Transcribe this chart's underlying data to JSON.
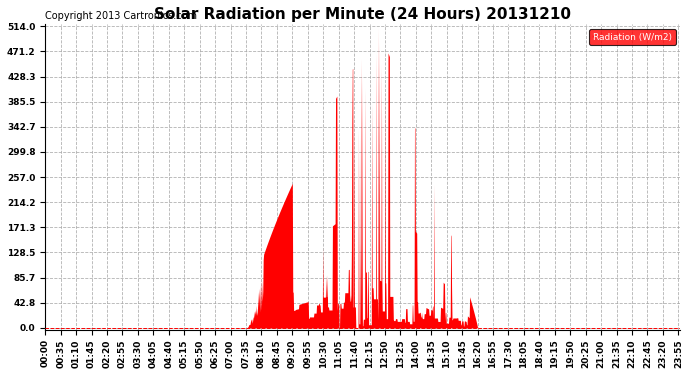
{
  "title": "Solar Radiation per Minute (24 Hours) 20131210",
  "copyright": "Copyright 2013 Cartronics.com",
  "legend_label": "Radiation (W/m2)",
  "yticks": [
    0.0,
    42.8,
    85.7,
    128.5,
    171.3,
    214.2,
    257.0,
    299.8,
    342.7,
    385.5,
    428.3,
    471.2,
    514.0
  ],
  "ymax": 514.0,
  "bar_color": "#FF0000",
  "background_color": "#FFFFFF",
  "legend_bg": "#FF0000",
  "legend_text_color": "#FFFFFF",
  "title_fontsize": 11,
  "copyright_fontsize": 7,
  "tick_label_fontsize": 6.5,
  "sunrise_min": 455,
  "sunset_min": 980,
  "peak_min": 755,
  "n_minutes": 1440
}
